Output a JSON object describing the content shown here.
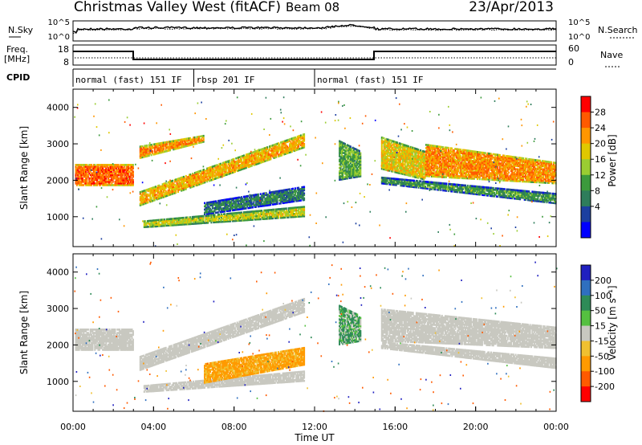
{
  "header": {
    "station": "Christmas Valley West (fitACF)",
    "beam": "Beam 08",
    "date": "23/Apr/2013"
  },
  "strips": {
    "nsky_label": "N.Sky",
    "nsky_ticks": [
      "10^5",
      "10^0"
    ],
    "nsearch_label": "N.Search",
    "nsearch_ticks": [
      "10^5",
      "10^0"
    ],
    "freq_label": "Freq.",
    "freq_unit": "[MHz]",
    "freq_ticks": [
      "18",
      "8"
    ],
    "nave_label": "Nave",
    "nave_ticks": [
      "60",
      "0"
    ],
    "cpid_label": "CPID",
    "modes": [
      {
        "label": "normal (fast) 151 IF",
        "start": 0,
        "end": 6
      },
      {
        "label": "rbsp 201 IF",
        "start": 6,
        "end": 12
      },
      {
        "label": "normal (fast) 151 IF",
        "start": 12,
        "end": 24
      }
    ]
  },
  "chart_data": [
    {
      "type": "heatmap",
      "name": "power",
      "ylabel": "Slant Range [km]",
      "xlabel": "",
      "xlim": [
        0,
        24
      ],
      "ylim": [
        180,
        4500
      ],
      "yticks": [
        "1000",
        "2000",
        "3000",
        "4000"
      ],
      "colorbar": {
        "label": "Power [dB]",
        "ticks": [
          "28",
          "24",
          "20",
          "16",
          "12",
          "8",
          "4"
        ],
        "colors": [
          "#ff0000",
          "#ff5a00",
          "#ff9600",
          "#e0c800",
          "#9acd32",
          "#3c9a3c",
          "#2e7d5b",
          "#1c3fa0",
          "#0000ff"
        ]
      },
      "echo_bands": [
        {
          "t": [
            0.1,
            3.0
          ],
          "r0": [
            1850,
            1850
          ],
          "r1": [
            2450,
            2450
          ],
          "level": 26
        },
        {
          "t": [
            3.3,
            6.5
          ],
          "r0": [
            2600,
            3050
          ],
          "r1": [
            2950,
            3250
          ],
          "level": 24
        },
        {
          "t": [
            3.3,
            11.5
          ],
          "r0": [
            1300,
            2900
          ],
          "r1": [
            1700,
            3300
          ],
          "level": 22
        },
        {
          "t": [
            3.5,
            11.5
          ],
          "r0": [
            700,
            1000
          ],
          "r1": [
            900,
            1300
          ],
          "level": 18
        },
        {
          "t": [
            6.5,
            11.5
          ],
          "r0": [
            1050,
            1450
          ],
          "r1": [
            1400,
            1850
          ],
          "level": 10
        },
        {
          "t": [
            13.2,
            14.3
          ],
          "r0": [
            2000,
            2100
          ],
          "r1": [
            3100,
            2800
          ],
          "level": 14
        },
        {
          "t": [
            15.3,
            17.5
          ],
          "r0": [
            2300,
            2000
          ],
          "r1": [
            3200,
            2800
          ],
          "level": 20
        },
        {
          "t": [
            17.5,
            24.0
          ],
          "r0": [
            2100,
            1900
          ],
          "r1": [
            3000,
            2500
          ],
          "level": 24
        },
        {
          "t": [
            15.3,
            24.0
          ],
          "r0": [
            1900,
            1350
          ],
          "r1": [
            2100,
            1650
          ],
          "level": 12
        }
      ]
    },
    {
      "type": "heatmap",
      "name": "velocity",
      "ylabel": "Slant Range [km]",
      "xlabel": "Time UT",
      "xlim": [
        0,
        24
      ],
      "ylim": [
        180,
        4500
      ],
      "xticks": [
        "00:00",
        "04:00",
        "08:00",
        "12:00",
        "16:00",
        "20:00",
        "00:00"
      ],
      "yticks": [
        "1000",
        "2000",
        "3000",
        "4000"
      ],
      "colorbar": {
        "label": "Velocity [m s⁻¹]",
        "ticks": [
          "200",
          "100",
          "50",
          "15",
          "-15",
          "-50",
          "-100",
          "-200"
        ],
        "colors": [
          "#2020c0",
          "#2f6fbf",
          "#2e8b57",
          "#55c040",
          "#c8c8c0",
          "#f0c030",
          "#ff9a00",
          "#ff5a00",
          "#ff0000"
        ]
      },
      "echo_bands": [
        {
          "t": [
            0.1,
            3.0
          ],
          "r0": [
            1850,
            1850
          ],
          "r1": [
            2450,
            2450
          ],
          "velocity": 0
        },
        {
          "t": [
            3.3,
            11.5
          ],
          "r0": [
            1300,
            2900
          ],
          "r1": [
            1700,
            3300
          ],
          "velocity": 0
        },
        {
          "t": [
            3.5,
            11.5
          ],
          "r0": [
            700,
            1000
          ],
          "r1": [
            900,
            1300
          ],
          "velocity": 0
        },
        {
          "t": [
            6.5,
            11.5
          ],
          "r0": [
            950,
            1450
          ],
          "r1": [
            1500,
            1950
          ],
          "velocity": -60
        },
        {
          "t": [
            13.2,
            14.3
          ],
          "r0": [
            2000,
            2100
          ],
          "r1": [
            3100,
            2800
          ],
          "velocity": 30
        },
        {
          "t": [
            15.3,
            24.0
          ],
          "r0": [
            2100,
            1900
          ],
          "r1": [
            3000,
            2500
          ],
          "velocity": 0
        },
        {
          "t": [
            15.3,
            24.0
          ],
          "r0": [
            1900,
            1350
          ],
          "r1": [
            2100,
            1650
          ],
          "velocity": 0
        }
      ]
    }
  ]
}
